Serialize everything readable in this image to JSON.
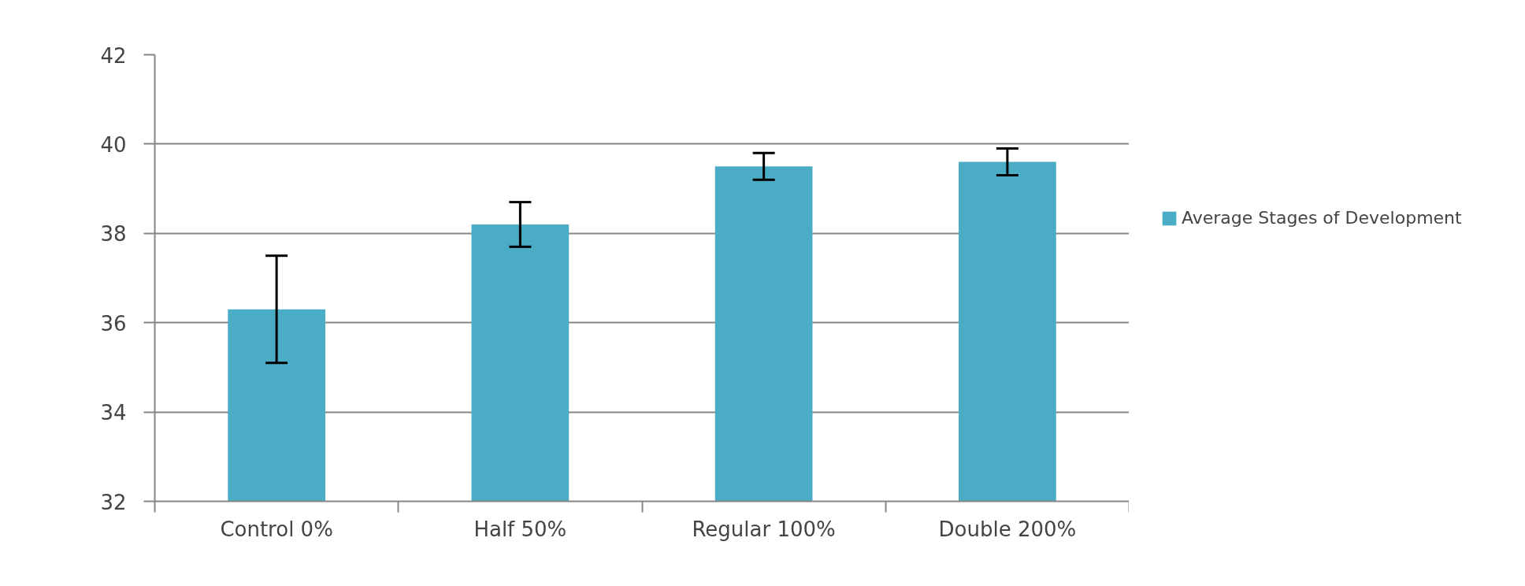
{
  "chart_data": {
    "type": "bar",
    "categories": [
      "Control 0%",
      "Half 50%",
      "Regular 100%",
      "Double 200%"
    ],
    "series": [
      {
        "name": "Average Stages of Development",
        "color": "#4bacc6",
        "values": [
          36.3,
          38.2,
          39.5,
          39.6
        ],
        "errors": [
          1.2,
          0.5,
          0.3,
          0.3
        ]
      }
    ],
    "ylim": [
      32,
      42
    ],
    "yticks": [
      32,
      34,
      36,
      38,
      40,
      42
    ],
    "grid": "y",
    "legend": "right"
  }
}
